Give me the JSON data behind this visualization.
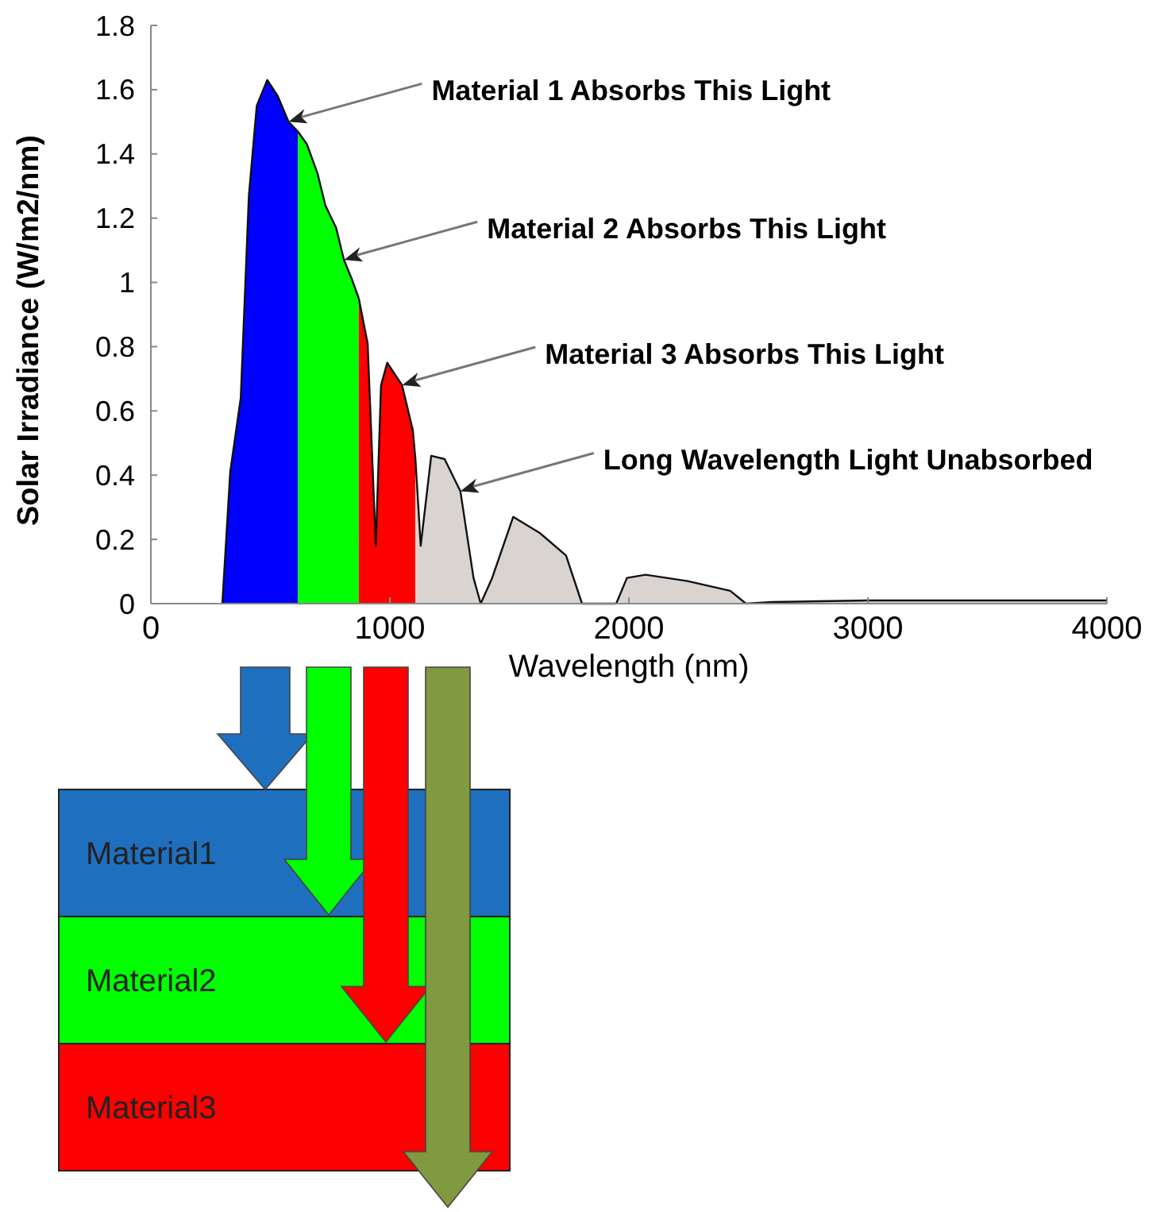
{
  "chart_data": {
    "type": "area",
    "ylabel": "Solar Irradiance (W/m2/nm)",
    "xlabel": "Wavelength (nm)",
    "xlim": [
      0,
      4000
    ],
    "xticks": [
      0,
      1000,
      2000,
      3000,
      4000
    ],
    "ylim": [
      0,
      1.8
    ],
    "yticks": [
      0,
      0.2,
      0.4,
      0.6,
      0.8,
      1,
      1.2,
      1.4,
      1.6,
      1.8
    ],
    "grid": false,
    "series": [
      {
        "color": "#0000ff",
        "x": [
          299,
          332,
          376,
          410,
          443,
          487,
          531,
          576,
          615
        ],
        "values": [
          0,
          0.41,
          0.64,
          1.27,
          1.55,
          1.63,
          1.58,
          1.5,
          1.47
        ]
      },
      {
        "color": "#00ff00",
        "x": [
          615,
          653,
          697,
          730,
          775,
          808,
          841,
          870
        ],
        "values": [
          1.47,
          1.43,
          1.34,
          1.24,
          1.17,
          1.07,
          1.01,
          0.95
        ]
      },
      {
        "color": "#ff0000",
        "x": [
          870,
          907,
          941,
          963,
          989,
          1051,
          1096,
          1107
        ],
        "values": [
          0.95,
          0.81,
          0.18,
          0.68,
          0.75,
          0.68,
          0.54,
          0.45
        ]
      },
      {
        "color": "#d9d4cf",
        "x": [
          1107,
          1129,
          1173,
          1229,
          1295,
          1350,
          1380,
          1428,
          1516,
          1627,
          1737,
          1804,
          1947,
          1992,
          2070,
          2246,
          2424,
          2490,
          2600,
          3000,
          3500,
          4000
        ],
        "values": [
          0.45,
          0.18,
          0.46,
          0.45,
          0.35,
          0.08,
          0,
          0.08,
          0.27,
          0.22,
          0.15,
          0,
          0,
          0.08,
          0.09,
          0.07,
          0.04,
          0,
          0.005,
          0.01,
          0.01,
          0.01
        ]
      }
    ],
    "annotations": [
      {
        "text": "Material 1 Absorbs This Light",
        "x": 576,
        "y": 1.5
      },
      {
        "text": "Material 2 Absorbs This Light",
        "x": 808,
        "y": 1.07
      },
      {
        "text": "Material 3 Absorbs This Light",
        "x": 1051,
        "y": 0.68
      },
      {
        "text": "Long Wavelength Light Unabsorbed",
        "x": 1295,
        "y": 0.35
      },
      "Material1",
      "Material2",
      "Material3"
    ]
  }
}
